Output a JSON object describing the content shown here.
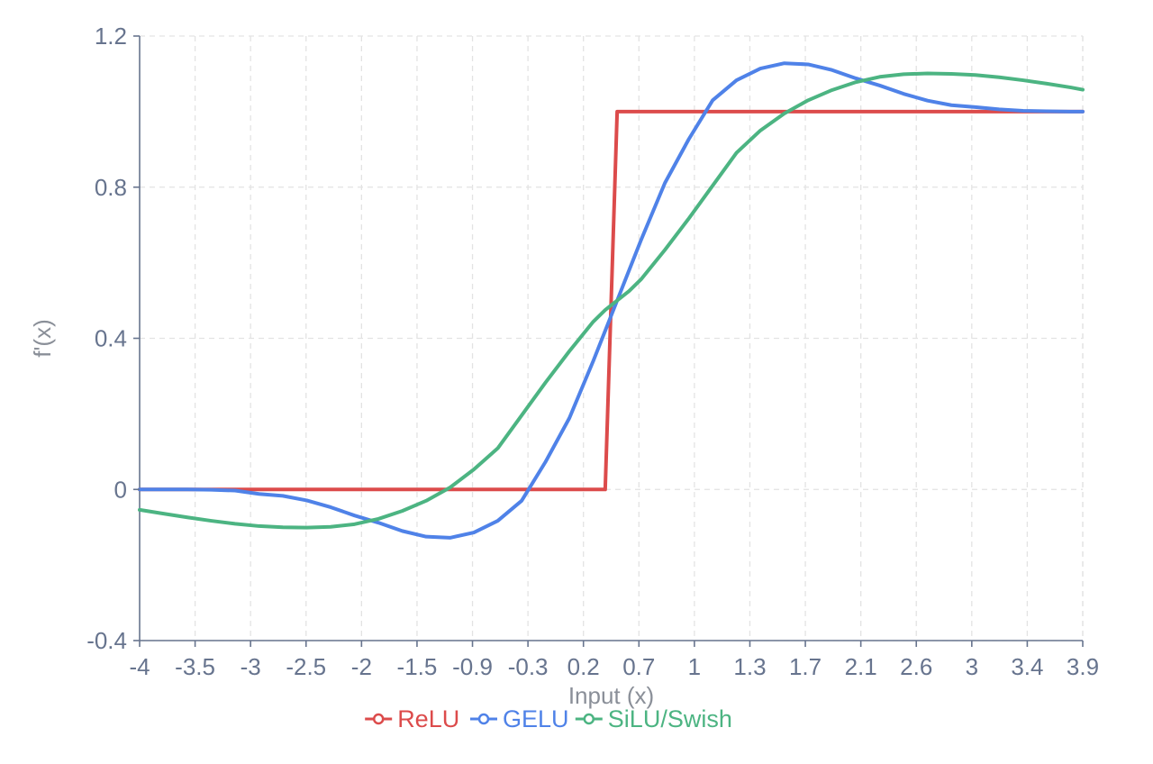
{
  "chart_data": {
    "type": "line",
    "title": "",
    "xlabel": "Input (x)",
    "ylabel": "f'(x)",
    "x_tick_labels": [
      "-4",
      "-3.5",
      "-3",
      "-2.5",
      "-2",
      "-1.5",
      "-0.9",
      "-0.3",
      "0.2",
      "0.7",
      "1",
      "1.3",
      "1.7",
      "2.1",
      "2.6",
      "3",
      "3.4",
      "3.9"
    ],
    "y_tick_labels": [
      "1.2",
      "0.8",
      "0.4",
      "0",
      "-0.4"
    ],
    "y_ticks": [
      1.2,
      0.8,
      0.4,
      0,
      -0.4
    ],
    "xlim": [
      -4,
      3.9
    ],
    "ylim": [
      -0.4,
      1.2
    ],
    "grid": true,
    "legend_position": "bottom",
    "x": [
      -4,
      -3.8,
      -3.6,
      -3.4,
      -3.2,
      -3,
      -2.8,
      -2.6,
      -2.4,
      -2.2,
      -2,
      -1.8,
      -1.6,
      -1.4,
      -1.2,
      -1,
      -0.8,
      -0.6,
      -0.4,
      -0.2,
      -0.1,
      0,
      0.1,
      0.2,
      0.4,
      0.6,
      0.8,
      1,
      1.2,
      1.4,
      1.6,
      1.8,
      2,
      2.2,
      2.4,
      2.6,
      2.8,
      3,
      3.2,
      3.4,
      3.6,
      3.8,
      3.9
    ],
    "series": [
      {
        "name": "ReLU",
        "color": "#dc4b4b",
        "values": [
          0,
          0,
          0,
          0,
          0,
          0,
          0,
          0,
          0,
          0,
          0,
          0,
          0,
          0,
          0,
          0,
          0,
          0,
          0,
          0,
          0,
          1,
          1,
          1,
          1,
          1,
          1,
          1,
          1,
          1,
          1,
          1,
          1,
          1,
          1,
          1,
          1,
          1,
          1,
          1,
          1,
          1,
          1
        ]
      },
      {
        "name": "GELU",
        "color": "#4f82e8",
        "values": [
          0,
          0,
          0,
          -0.001,
          -0.003,
          -0.012,
          -0.017,
          -0.029,
          -0.047,
          -0.069,
          -0.088,
          -0.11,
          -0.125,
          -0.128,
          -0.114,
          -0.083,
          -0.03,
          0.073,
          0.189,
          0.34,
          0.42,
          0.5,
          0.58,
          0.66,
          0.811,
          0.927,
          1.03,
          1.083,
          1.114,
          1.128,
          1.125,
          1.11,
          1.088,
          1.069,
          1.047,
          1.029,
          1.017,
          1.012,
          1.006,
          1.002,
          1.001,
          1.0,
          1.0
        ]
      },
      {
        "name": "SiLU/Swish",
        "color": "#4cb482",
        "values": [
          -0.054,
          -0.064,
          -0.074,
          -0.083,
          -0.091,
          -0.097,
          -0.1,
          -0.101,
          -0.099,
          -0.092,
          -0.078,
          -0.057,
          -0.03,
          0.005,
          0.053,
          0.109,
          0.196,
          0.283,
          0.366,
          0.444,
          0.475,
          0.5,
          0.525,
          0.556,
          0.634,
          0.717,
          0.804,
          0.891,
          0.95,
          0.995,
          1.03,
          1.057,
          1.078,
          1.092,
          1.099,
          1.101,
          1.1,
          1.097,
          1.091,
          1.083,
          1.074,
          1.064,
          1.058
        ]
      }
    ]
  }
}
